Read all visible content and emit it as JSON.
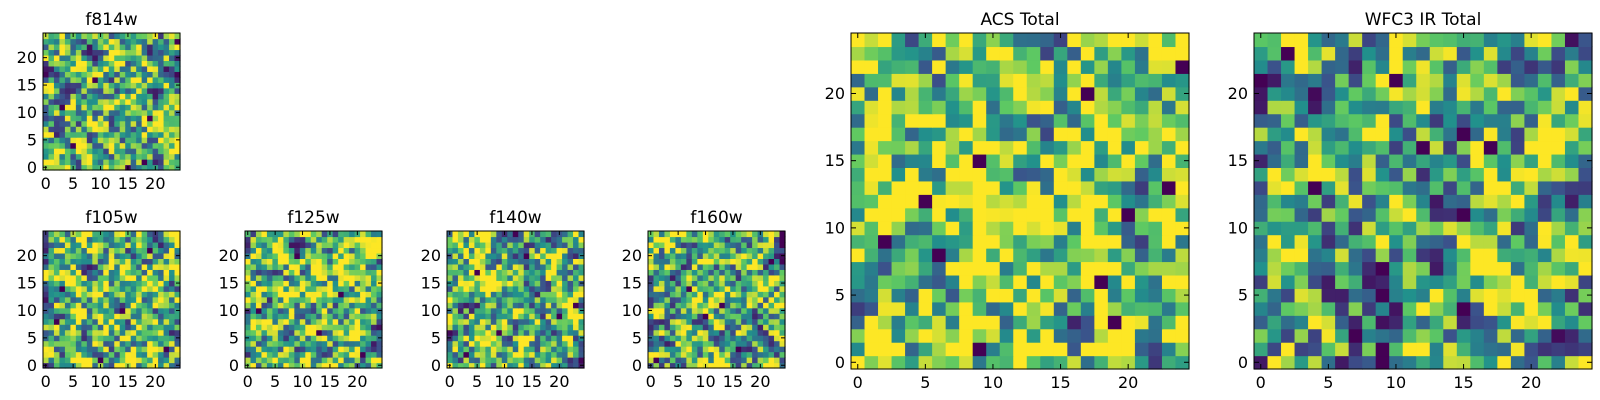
{
  "colormap": {
    "name": "viridis",
    "stops": [
      "#440154",
      "#3b528b",
      "#21918c",
      "#5ec962",
      "#fde725"
    ]
  },
  "chart_data": [
    {
      "id": "f814w",
      "type": "heatmap",
      "title": "f814w",
      "grid_size": 25,
      "xlim": [
        0,
        24
      ],
      "ylim": [
        0,
        24
      ],
      "xticks": [
        "0",
        "5",
        "10",
        "15",
        "20"
      ],
      "yticks": [
        "0",
        "5",
        "10",
        "15",
        "20"
      ],
      "seed": 11,
      "bias": 0.06,
      "dark_points": [
        [
          18,
          1
        ],
        [
          9,
          16
        ],
        [
          3,
          11
        ],
        [
          24,
          23
        ],
        [
          5,
          4
        ],
        [
          15,
          0
        ],
        [
          19,
          9
        ]
      ]
    },
    {
      "id": "f105w",
      "type": "heatmap",
      "title": "f105w",
      "grid_size": 25,
      "xlim": [
        0,
        24
      ],
      "ylim": [
        0,
        24
      ],
      "xticks": [
        "0",
        "5",
        "10",
        "15",
        "20"
      ],
      "yticks": [
        "0",
        "5",
        "10",
        "15",
        "20"
      ],
      "seed": 23,
      "bias": 0.05,
      "dark_points": [
        [
          3,
          14
        ],
        [
          10,
          1
        ],
        [
          19,
          21
        ],
        [
          2,
          8
        ],
        [
          22,
          3
        ],
        [
          14,
          10
        ]
      ]
    },
    {
      "id": "f125w",
      "type": "heatmap",
      "title": "f125w",
      "grid_size": 25,
      "xlim": [
        0,
        24
      ],
      "ylim": [
        0,
        24
      ],
      "xticks": [
        "0",
        "5",
        "10",
        "15",
        "20"
      ],
      "yticks": [
        "0",
        "5",
        "10",
        "15",
        "20"
      ],
      "seed": 37,
      "bias": 0.05,
      "dark_points": [
        [
          2,
          10
        ],
        [
          17,
          13
        ],
        [
          21,
          2
        ],
        [
          9,
          20
        ],
        [
          13,
          6
        ]
      ]
    },
    {
      "id": "f140w",
      "type": "heatmap",
      "title": "f140w",
      "grid_size": 25,
      "xlim": [
        0,
        24
      ],
      "ylim": [
        0,
        24
      ],
      "xticks": [
        "0",
        "5",
        "10",
        "15",
        "20"
      ],
      "yticks": [
        "0",
        "5",
        "10",
        "15",
        "20"
      ],
      "seed": 41,
      "bias": 0.02,
      "dark_points": [
        [
          3,
          2
        ],
        [
          5,
          17
        ],
        [
          20,
          9
        ],
        [
          9,
          6
        ],
        [
          23,
          11
        ],
        [
          14,
          20
        ]
      ]
    },
    {
      "id": "f160w",
      "type": "heatmap",
      "title": "f160w",
      "grid_size": 25,
      "xlim": [
        0,
        24
      ],
      "ylim": [
        0,
        24
      ],
      "xticks": [
        "0",
        "5",
        "10",
        "15",
        "20"
      ],
      "yticks": [
        "0",
        "5",
        "10",
        "15",
        "20"
      ],
      "seed": 53,
      "bias": 0.02,
      "dark_points": [
        [
          7,
          14
        ],
        [
          13,
          11
        ],
        [
          16,
          3
        ],
        [
          1,
          1
        ],
        [
          10,
          9
        ],
        [
          22,
          19
        ]
      ]
    },
    {
      "id": "acs_total",
      "type": "heatmap",
      "title": "ACS Total",
      "grid_size": 25,
      "xlim": [
        0,
        24
      ],
      "ylim": [
        0,
        24
      ],
      "xticks": [
        "0",
        "5",
        "10",
        "15",
        "20"
      ],
      "yticks": [
        "0",
        "5",
        "10",
        "15",
        "20"
      ],
      "seed": 67,
      "bias": 0.14,
      "dark_points": [
        [
          24,
          22
        ],
        [
          9,
          15
        ],
        [
          6,
          8
        ],
        [
          5,
          12
        ],
        [
          2,
          9
        ],
        [
          20,
          11
        ],
        [
          23,
          13
        ],
        [
          18,
          6
        ],
        [
          9,
          1
        ],
        [
          19,
          3
        ],
        [
          17,
          20
        ]
      ]
    },
    {
      "id": "wfc3_ir_total",
      "type": "heatmap",
      "title": "WFC3 IR Total",
      "grid_size": 25,
      "xlim": [
        0,
        24
      ],
      "ylim": [
        0,
        24
      ],
      "xticks": [
        "0",
        "5",
        "10",
        "15",
        "20"
      ],
      "yticks": [
        "0",
        "5",
        "10",
        "15",
        "20"
      ],
      "seed": 79,
      "bias": -0.02,
      "dark_points": [
        [
          2,
          23
        ],
        [
          10,
          21
        ],
        [
          4,
          13
        ],
        [
          12,
          16
        ],
        [
          15,
          11
        ],
        [
          7,
          2
        ],
        [
          9,
          1
        ],
        [
          9,
          0
        ],
        [
          15,
          4
        ],
        [
          17,
          16
        ],
        [
          15,
          17
        ]
      ]
    }
  ]
}
